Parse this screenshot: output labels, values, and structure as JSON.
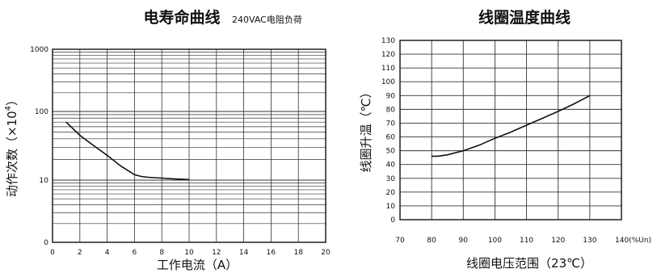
{
  "charts": {
    "left": {
      "title": "电寿命曲线",
      "subtitle": "240VAC电阻负荷",
      "xlabel": "工作电流（A）",
      "ylabel": "动作次数（×10",
      "ylabel_exp": "4",
      "ylabel_close": "）"
    },
    "right": {
      "title": "线圈温度曲线",
      "xlabel": "线圈电压范围（23℃）",
      "ylabel": "线圈升温（℃）"
    }
  },
  "chart_data": [
    {
      "type": "line",
      "title": "电寿命曲线",
      "subtitle": "240VAC电阻负荷",
      "xlabel": "工作电流（A）",
      "ylabel": "动作次数（×10⁴）",
      "xlim": [
        0,
        20
      ],
      "x_ticks": [
        0,
        2,
        4,
        6,
        8,
        10,
        12,
        14,
        16,
        18,
        20
      ],
      "y_scale": "log",
      "y_tick_labels": [
        "0",
        "10",
        "100",
        "1000"
      ],
      "grid": true,
      "series": [
        {
          "x": [
            1,
            2,
            3,
            4,
            5,
            6,
            6.5,
            7,
            8,
            9,
            10
          ],
          "values": [
            70,
            45,
            32,
            23,
            16,
            12,
            11.3,
            11,
            10.7,
            10.4,
            10.2
          ]
        }
      ]
    },
    {
      "type": "line",
      "title": "线圈温度曲线",
      "xlabel": "线圈电压范围（23℃）",
      "ylabel": "线圈升温（℃）",
      "xlim": [
        70,
        140
      ],
      "ylim": [
        0,
        130
      ],
      "x_ticks": [
        70,
        80,
        90,
        100,
        110,
        120,
        130,
        140
      ],
      "x_tick_labels": [
        "70",
        "80",
        "90",
        "100",
        "110",
        "120",
        "130",
        "140(%Un)"
      ],
      "y_ticks": [
        0,
        10,
        20,
        30,
        40,
        50,
        60,
        70,
        80,
        90,
        100,
        110,
        120,
        130
      ],
      "grid": true,
      "series": [
        {
          "x": [
            80,
            82,
            85,
            90,
            95,
            100,
            105,
            110,
            115,
            120,
            125,
            130
          ],
          "values": [
            46,
            46,
            47,
            50,
            54,
            59,
            63.5,
            68.5,
            73.5,
            78.5,
            84,
            90
          ]
        }
      ]
    }
  ]
}
